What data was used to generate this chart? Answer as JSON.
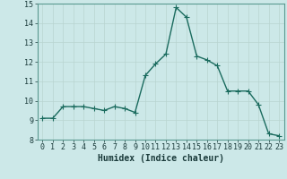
{
  "x": [
    0,
    1,
    2,
    3,
    4,
    5,
    6,
    7,
    8,
    9,
    10,
    11,
    12,
    13,
    14,
    15,
    16,
    17,
    18,
    19,
    20,
    21,
    22,
    23
  ],
  "y": [
    9.1,
    9.1,
    9.7,
    9.7,
    9.7,
    9.6,
    9.5,
    9.7,
    9.6,
    9.4,
    11.3,
    11.9,
    12.4,
    14.8,
    14.3,
    12.3,
    12.1,
    11.8,
    10.5,
    10.5,
    10.5,
    9.8,
    8.3,
    8.2
  ],
  "xlim": [
    -0.5,
    23.5
  ],
  "ylim": [
    8,
    15
  ],
  "yticks": [
    8,
    9,
    10,
    11,
    12,
    13,
    14,
    15
  ],
  "xticks": [
    0,
    1,
    2,
    3,
    4,
    5,
    6,
    7,
    8,
    9,
    10,
    11,
    12,
    13,
    14,
    15,
    16,
    17,
    18,
    19,
    20,
    21,
    22,
    23
  ],
  "xlabel": "Humidex (Indice chaleur)",
  "line_color": "#1a6b5e",
  "marker_color": "#1a6b5e",
  "bg_color": "#cce8e8",
  "grid_color": "#b8d4d0",
  "line_width": 1.0,
  "marker_size": 2.5,
  "tick_fontsize": 6.0,
  "xlabel_fontsize": 7.0
}
